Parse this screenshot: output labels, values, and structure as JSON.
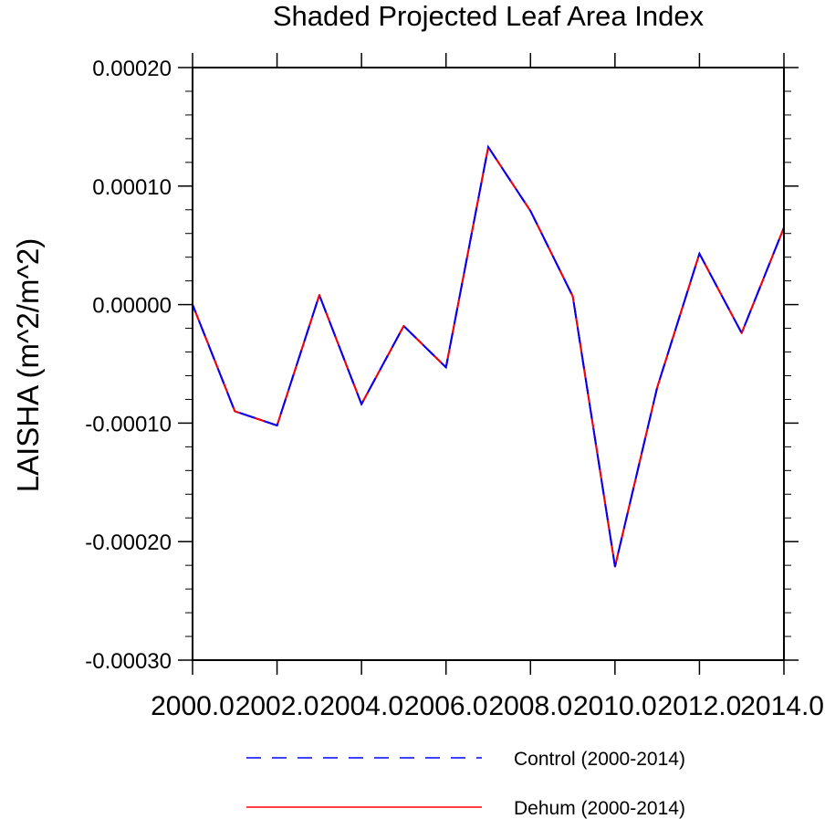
{
  "chart_data": {
    "type": "line",
    "title": "Shaded Projected Leaf Area Index",
    "xlabel": "",
    "ylabel": "LAISHA  (m^2/m^2)",
    "xlim": [
      2000,
      2014
    ],
    "ylim": [
      -0.0003,
      0.0002
    ],
    "x_ticks": [
      2000,
      2002,
      2004,
      2006,
      2008,
      2010,
      2012,
      2014
    ],
    "x_tick_labels": [
      "2000.0",
      "2002.0",
      "2004.0",
      "2006.0",
      "2008.0",
      "2010.0",
      "2012.0",
      "2014.0"
    ],
    "y_ticks": [
      0.0002,
      0.0001,
      0,
      -0.0001,
      -0.0002,
      -0.0003
    ],
    "y_tick_labels": [
      "0.00020",
      "0.00010",
      "0.00000",
      "-0.00010",
      "-0.00020",
      "-0.00030"
    ],
    "x": [
      2000,
      2001,
      2002,
      2003,
      2004,
      2005,
      2006,
      2007,
      2008,
      2009,
      2010,
      2011,
      2012,
      2013,
      2014
    ],
    "series": [
      {
        "name": "Control (2000-2014)",
        "color": "#0000ff",
        "style": "dashed",
        "values": [
          0.0,
          -9e-05,
          -0.000102,
          8e-06,
          -8.4e-05,
          -1.8e-05,
          -5.3e-05,
          0.000133,
          7.9e-05,
          7e-06,
          -0.000221,
          -7e-05,
          4.3e-05,
          -2.4e-05,
          6.5e-05
        ]
      },
      {
        "name": "Dehum (2000-2014)",
        "color": "#ff0000",
        "style": "solid",
        "values": [
          0.0,
          -9e-05,
          -0.000102,
          8e-06,
          -8.4e-05,
          -1.8e-05,
          -5.3e-05,
          0.000133,
          7.9e-05,
          7e-06,
          -0.000221,
          -7e-05,
          4.3e-05,
          -2.4e-05,
          6.5e-05
        ]
      }
    ],
    "legend_position": "bottom"
  }
}
